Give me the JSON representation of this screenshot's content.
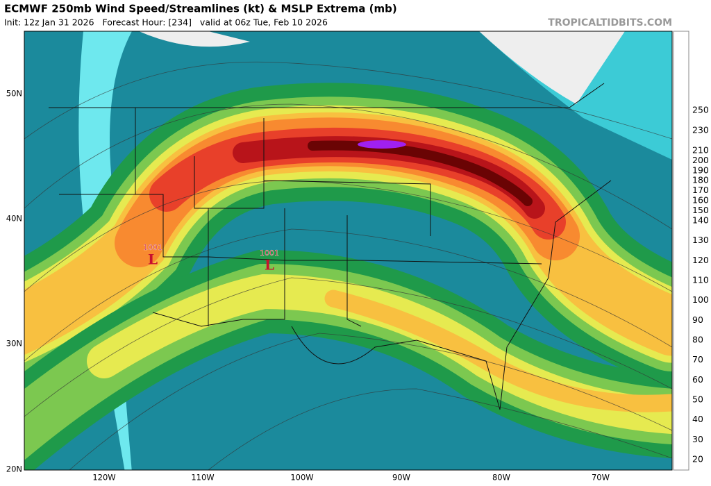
{
  "header": {
    "title": "ECMWF 250mb Wind Speed/Streamlines (kt) & MSLP Extrema (mb)",
    "subtitle": "Init: 12z Jan 31 2026   Forecast Hour: [234]   valid at 06z Tue, Feb 10 2026",
    "watermark": "TROPICALTIDBITS.COM"
  },
  "map": {
    "lat_labels": [
      "50N",
      "40N",
      "30N",
      "20N"
    ],
    "lon_labels": [
      "120W",
      "110W",
      "100W",
      "90W",
      "80W",
      "70W"
    ],
    "lows": [
      {
        "pressure": 1001,
        "symbol": "L"
      },
      {
        "pressure": 1001,
        "symbol": "L"
      }
    ]
  },
  "colorbar": {
    "ticks": [
      20,
      30,
      40,
      50,
      60,
      70,
      80,
      90,
      100,
      110,
      120,
      130,
      140,
      150,
      160,
      170,
      180,
      190,
      200,
      210,
      230,
      250
    ],
    "colors": [
      "#6ee8ee",
      "#3ccbd6",
      "#2aa6b8",
      "#1b8a9c",
      "#0f6f82",
      "#1f9a4a",
      "#7cc850",
      "#e6ea50",
      "#f8c040",
      "#f88a30",
      "#e8402a",
      "#b8141a",
      "#6a0404",
      "#a020f0",
      "#c060f0",
      "#e090e8",
      "#f8c0e0",
      "#f8a8c8",
      "#f08898",
      "#e06070",
      "#c84050",
      "#a82838"
    ]
  }
}
